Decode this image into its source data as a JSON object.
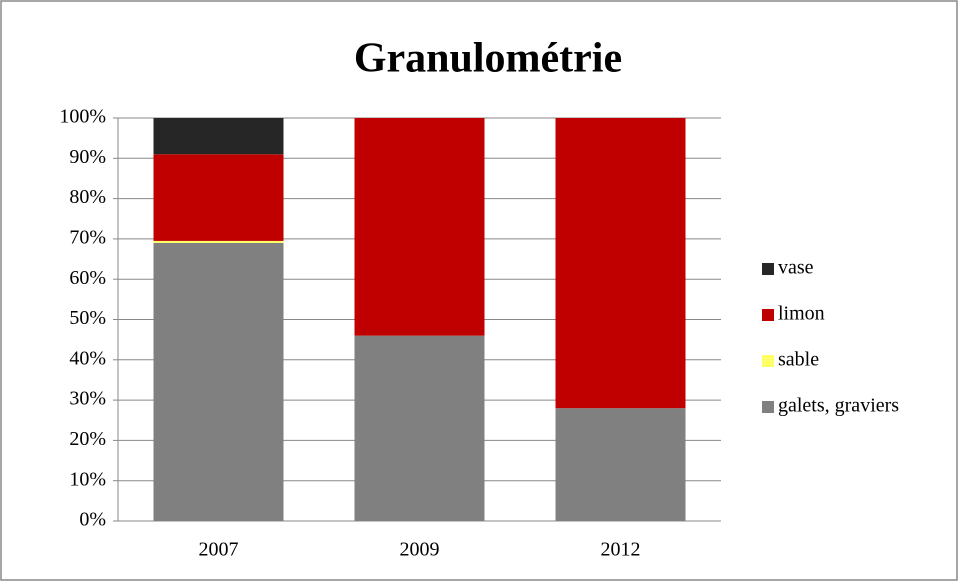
{
  "chart_data": {
    "type": "stacked_bar",
    "title": "Granulométrie",
    "categories": [
      "2007",
      "2009",
      "2012"
    ],
    "series": [
      {
        "name": "galets, graviers",
        "color": "#808080",
        "values": [
          69,
          46,
          28
        ]
      },
      {
        "name": "sable",
        "color": "#ffff66",
        "values": [
          0.5,
          0,
          0
        ]
      },
      {
        "name": "limon",
        "color": "#c00000",
        "values": [
          21.5,
          54,
          72
        ]
      },
      {
        "name": "vase",
        "color": "#262626",
        "values": [
          9,
          0,
          0
        ]
      }
    ],
    "ylim": [
      0,
      100
    ],
    "yticks": [
      {
        "value": 0,
        "label": "0%"
      },
      {
        "value": 10,
        "label": "10%"
      },
      {
        "value": 20,
        "label": "20%"
      },
      {
        "value": 30,
        "label": "30%"
      },
      {
        "value": 40,
        "label": "40%"
      },
      {
        "value": 50,
        "label": "50%"
      },
      {
        "value": 60,
        "label": "60%"
      },
      {
        "value": 70,
        "label": "70%"
      },
      {
        "value": 80,
        "label": "80%"
      },
      {
        "value": 90,
        "label": "90%"
      },
      {
        "value": 100,
        "label": "100%"
      }
    ],
    "grid": true,
    "legend": "right"
  }
}
